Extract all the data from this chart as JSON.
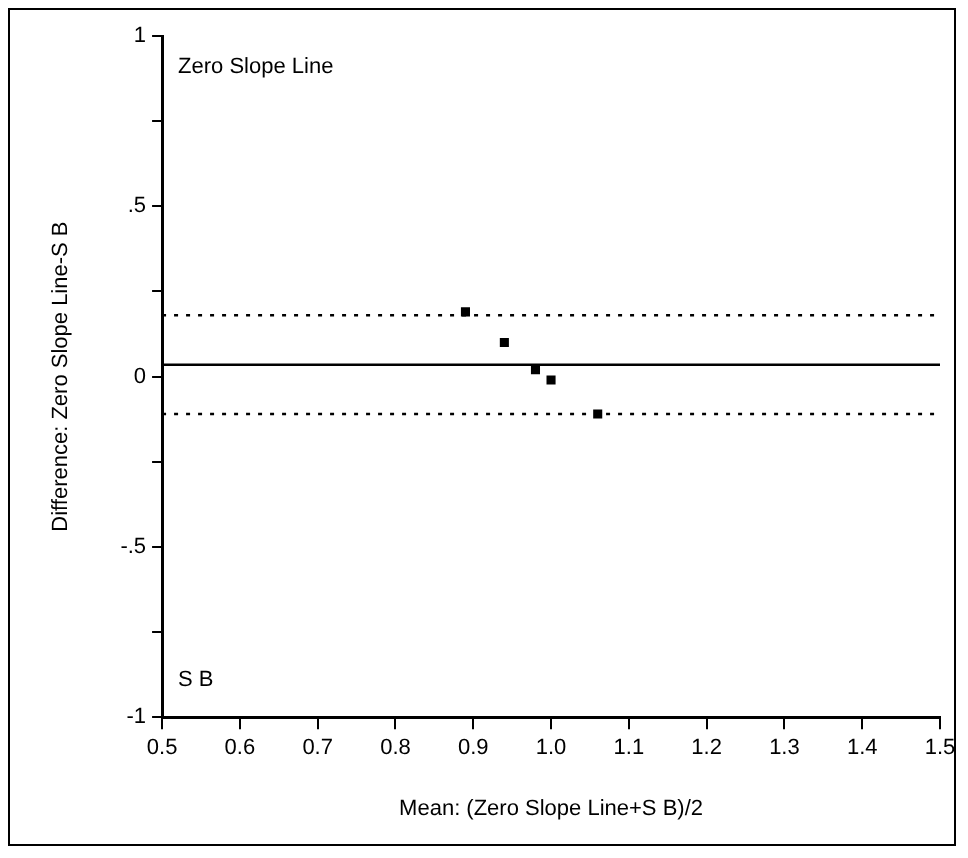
{
  "chart_data": {
    "type": "scatter",
    "xlabel": "Mean: (Zero Slope Line+S B)/2",
    "ylabel": "Difference: Zero Slope Line-S B",
    "x": [
      0.89,
      0.94,
      0.98,
      1.0,
      1.06
    ],
    "series": [
      {
        "color": "#000000",
        "values": [
          0.19,
          0.1,
          0.02,
          -0.01,
          -0.11
        ]
      }
    ],
    "xlim": [
      0.5,
      1.5
    ],
    "xticks": [
      {
        "value": 0.5,
        "label": "0.5"
      },
      0.6,
      0.7,
      0.8,
      0.9,
      {
        "value": 1,
        "label": "1.0"
      },
      1.1,
      1.2,
      1.3,
      1.4,
      1.5
    ],
    "ylim": [
      -1,
      1
    ],
    "yticks": [
      -1,
      {
        "value": -0.75,
        "label": null
      },
      {
        "value": -0.5,
        "label": "-.5"
      },
      {
        "value": -0.25,
        "label": null
      },
      0,
      {
        "value": 0.25,
        "label": null
      },
      {
        "value": 0.5,
        "label": ".5"
      },
      {
        "value": 0.75,
        "label": null
      },
      1
    ],
    "ref_lines": [
      {
        "axis": "y",
        "value": 0.035,
        "line_style": "solid",
        "color": "#000000"
      },
      {
        "axis": "y",
        "value": 0.18,
        "line_style": "dotted",
        "color": "#000000"
      },
      {
        "axis": "y",
        "value": -0.11,
        "line_style": "dotted",
        "color": "#000000"
      }
    ],
    "annotations": [
      "Zero Slope Line",
      "S B"
    ],
    "grid": false,
    "legend": false,
    "marker": "square"
  }
}
